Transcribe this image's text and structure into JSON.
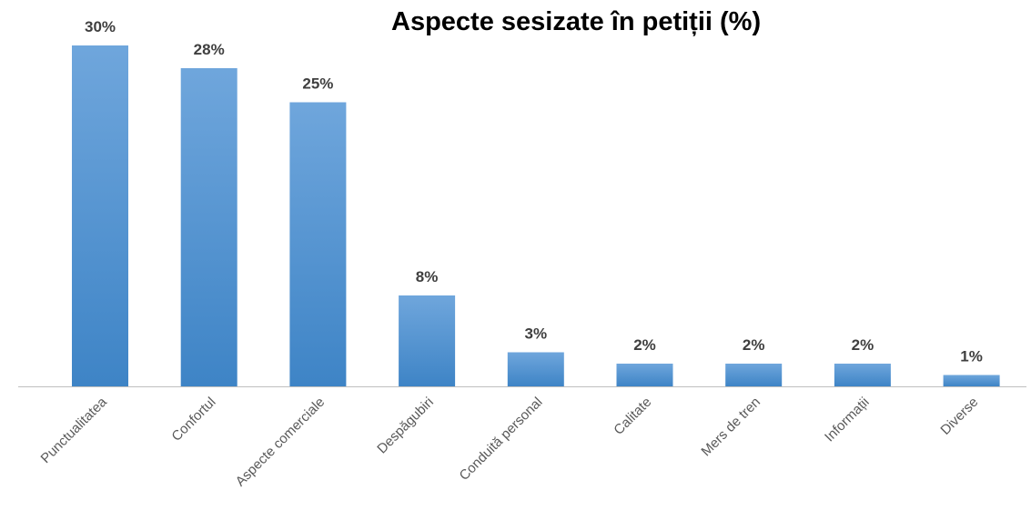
{
  "chart_data": {
    "type": "bar",
    "title": "Aspecte sesizate în petiții (%)",
    "categories": [
      "Punctualitatea",
      "Confortul",
      "Aspecte comerciale",
      "Despăgubiri",
      "Conduită personal",
      "Calitate",
      "Mers de tren",
      "Informații",
      "Diverse"
    ],
    "values": [
      30,
      28,
      25,
      8,
      3,
      2,
      2,
      2,
      1
    ],
    "data_labels": [
      "30%",
      "28%",
      "25%",
      "8%",
      "3%",
      "2%",
      "2%",
      "2%",
      "1%"
    ],
    "xlabel": "",
    "ylabel": "",
    "grid": false,
    "legend": "none",
    "colors": {
      "bar": "#5b9bd5",
      "bar_top": "#6fa6dc",
      "bar_bottom": "#3e84c6",
      "axis": "#bfbfbf"
    }
  }
}
